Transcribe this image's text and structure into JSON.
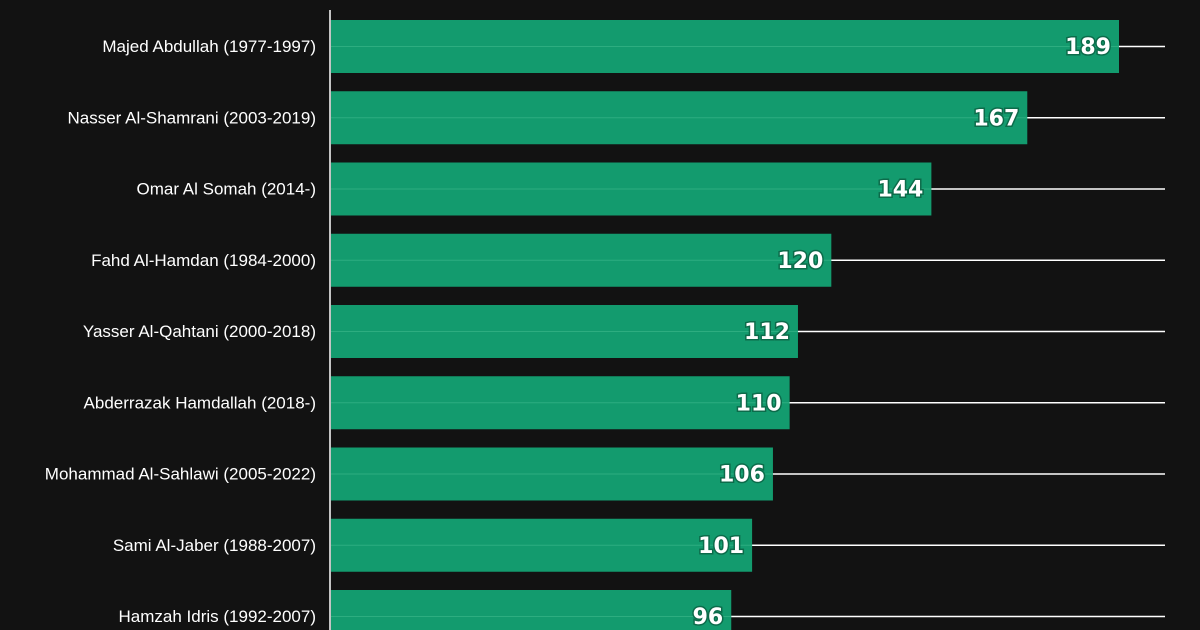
{
  "chart_data": {
    "type": "bar",
    "orientation": "horizontal",
    "categories": [
      "Majed Abdullah (1977-1997)",
      "Nasser Al-Shamrani (2003-2019)",
      "Omar Al Somah (2014-)",
      "Fahd Al-Hamdan (1984-2000)",
      "Yasser Al-Qahtani (2000-2018)",
      "Abderrazak Hamdallah (2018-)",
      "Mohammad Al-Sahlawi (2005-2022)",
      "Sami Al-Jaber (1988-2007)",
      "Hamzah Idris (1992-2007)"
    ],
    "values": [
      189,
      167,
      144,
      120,
      112,
      110,
      106,
      101,
      96
    ],
    "xlim": [
      0,
      200
    ],
    "grid": true,
    "colors": {
      "background": "#121212",
      "bar": "#139b6e",
      "gridline": "#ffffff",
      "label_text": "#ffffff"
    }
  }
}
